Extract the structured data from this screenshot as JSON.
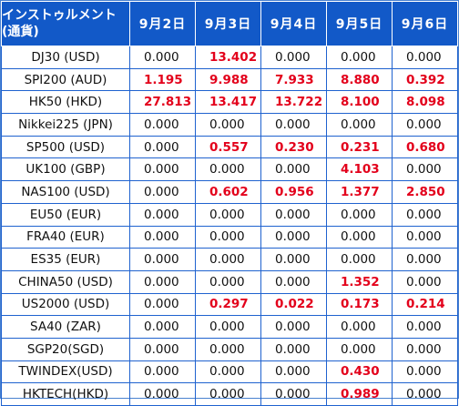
{
  "header": {
    "instrument_line1": "インストゥルメント",
    "instrument_line2": "(通貨)",
    "days": [
      "9月2日",
      "9月3日",
      "9月4日",
      "9月5日",
      "9月6日"
    ]
  },
  "colors": {
    "header_bg": "#1259c8",
    "header_text": "#ffffff",
    "grid_line": "#1f62cf",
    "highlight_value": "#e3001b",
    "normal_value": "#111111"
  },
  "rows": [
    {
      "instrument": "DJ30 (USD)",
      "values": [
        "0.000",
        "13.402",
        "0.000",
        "0.000",
        "0.000"
      ]
    },
    {
      "instrument": "SPI200 (AUD)",
      "values": [
        "1.195",
        "9.988",
        "7.933",
        "8.880",
        "0.392"
      ]
    },
    {
      "instrument": "HK50 (HKD)",
      "values": [
        "27.813",
        "13.417",
        "13.722",
        "8.100",
        "8.098"
      ]
    },
    {
      "instrument": "Nikkei225 (JPN)",
      "values": [
        "0.000",
        "0.000",
        "0.000",
        "0.000",
        "0.000"
      ]
    },
    {
      "instrument": "SP500 (USD)",
      "values": [
        "0.000",
        "0.557",
        "0.230",
        "0.231",
        "0.680"
      ]
    },
    {
      "instrument": "UK100 (GBP)",
      "values": [
        "0.000",
        "0.000",
        "0.000",
        "4.103",
        "0.000"
      ]
    },
    {
      "instrument": "NAS100 (USD)",
      "values": [
        "0.000",
        "0.602",
        "0.956",
        "1.377",
        "2.850"
      ]
    },
    {
      "instrument": "EU50 (EUR)",
      "values": [
        "0.000",
        "0.000",
        "0.000",
        "0.000",
        "0.000"
      ]
    },
    {
      "instrument": "FRA40 (EUR)",
      "values": [
        "0.000",
        "0.000",
        "0.000",
        "0.000",
        "0.000"
      ]
    },
    {
      "instrument": "ES35 (EUR)",
      "values": [
        "0.000",
        "0.000",
        "0.000",
        "0.000",
        "0.000"
      ]
    },
    {
      "instrument": "CHINA50 (USD)",
      "values": [
        "0.000",
        "0.000",
        "0.000",
        "1.352",
        "0.000"
      ]
    },
    {
      "instrument": "US2000 (USD)",
      "values": [
        "0.000",
        "0.297",
        "0.022",
        "0.173",
        "0.214"
      ]
    },
    {
      "instrument": "SA40 (ZAR)",
      "values": [
        "0.000",
        "0.000",
        "0.000",
        "0.000",
        "0.000"
      ]
    },
    {
      "instrument": "SGP20(SGD)",
      "values": [
        "0.000",
        "0.000",
        "0.000",
        "0.000",
        "0.000"
      ]
    },
    {
      "instrument": "TWINDEX(USD)",
      "values": [
        "0.000",
        "0.000",
        "0.000",
        "0.430",
        "0.000"
      ]
    },
    {
      "instrument": "HKTECH(HKD)",
      "values": [
        "0.000",
        "0.000",
        "0.000",
        "0.989",
        "0.000"
      ]
    }
  ]
}
